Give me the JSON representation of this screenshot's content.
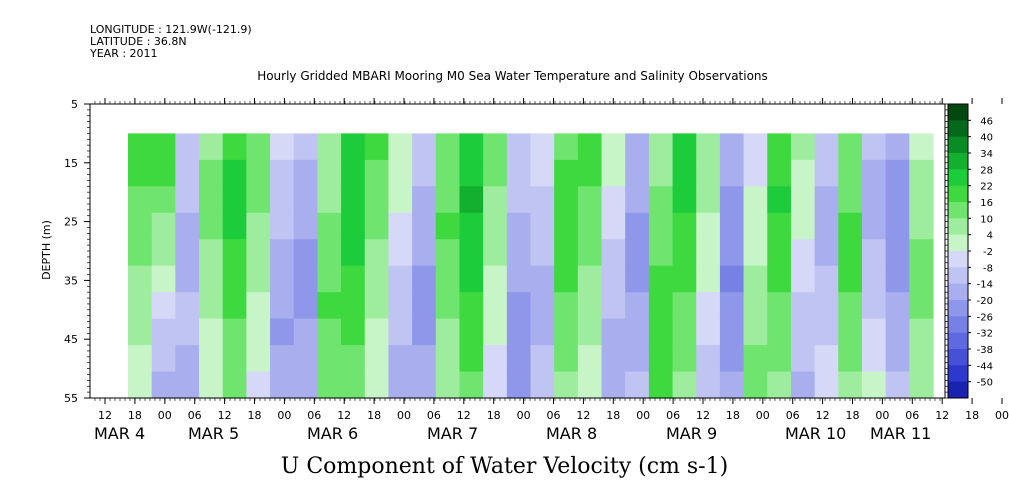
{
  "header": {
    "longitude": "LONGITUDE : 121.9W(-121.9)",
    "latitude": "LATITUDE : 36.8N",
    "year": "YEAR : 2011"
  },
  "chart_data": {
    "type": "heatmap",
    "title": "Hourly Gridded MBARI Mooring M0 Sea Water Temperature and Salinity Observations",
    "xlabel": "U Component of Water Velocity (cm s-1)",
    "ylabel": "DEPTH (m)",
    "ylim": [
      55,
      5
    ],
    "depth_range_data": [
      10,
      55
    ],
    "y_ticks": [
      5,
      15,
      25,
      35,
      45,
      55
    ],
    "x_hour_ticks": [
      "12",
      "18",
      "00",
      "06",
      "12",
      "18",
      "00",
      "06",
      "12",
      "18",
      "00",
      "06",
      "12",
      "18",
      "00",
      "06",
      "12",
      "18",
      "00",
      "06",
      "12",
      "18",
      "00",
      "06",
      "12",
      "18",
      "00",
      "06",
      "12",
      "18",
      "00",
      "06",
      "12",
      "18",
      "00",
      "06"
    ],
    "x_day_labels": [
      "MAR 4",
      "MAR 5",
      "MAR 6",
      "MAR 7",
      "MAR 8",
      "MAR 9",
      "MAR 10",
      "MAR 11"
    ],
    "colorbar_labels": [
      "46",
      "40",
      "34",
      "28",
      "22",
      "16",
      "10",
      "4",
      "-2",
      "-8",
      "-14",
      "-20",
      "-26",
      "-32",
      "-38",
      "-44",
      "-50"
    ],
    "colorscale": {
      "positive": [
        "#c8f5c8",
        "#9eed9e",
        "#6fe46f",
        "#3ed93e",
        "#1dcc3a",
        "#12b02e",
        "#0a8c24",
        "#06681a",
        "#034810"
      ],
      "negative": [
        "#d6d8f7",
        "#c0c4f2",
        "#a8aeee",
        "#8f97ea",
        "#7780e5",
        "#5f69e0",
        "#4651d8",
        "#2d38cc",
        "#1a22b0",
        "#0e138a",
        "#060860"
      ]
    },
    "grid": false,
    "legend": "right colorbar",
    "columns": [
      [
        18,
        20,
        17,
        15,
        12,
        10,
        8,
        6,
        4,
        2
      ],
      [
        20,
        18,
        14,
        10,
        6,
        2,
        -4,
        -8,
        -10,
        -12
      ],
      [
        -6,
        -8,
        -10,
        -12,
        -14,
        -12,
        -10,
        -8,
        -12,
        -16
      ],
      [
        10,
        12,
        14,
        12,
        10,
        8,
        6,
        4,
        2,
        0
      ],
      [
        22,
        24,
        26,
        24,
        22,
        20,
        18,
        16,
        14,
        12
      ],
      [
        16,
        14,
        12,
        10,
        8,
        6,
        4,
        2,
        0,
        -2
      ],
      [
        -4,
        -6,
        -8,
        -10,
        -12,
        -14,
        -16,
        -18,
        -16,
        -14
      ],
      [
        -10,
        -12,
        -14,
        -16,
        -18,
        -20,
        -18,
        -16,
        -14,
        -12
      ],
      [
        6,
        8,
        10,
        12,
        14,
        16,
        18,
        16,
        14,
        12
      ],
      [
        24,
        26,
        28,
        26,
        24,
        22,
        20,
        18,
        16,
        14
      ],
      [
        18,
        16,
        14,
        12,
        10,
        8,
        6,
        4,
        2,
        0
      ],
      [
        4,
        2,
        0,
        -2,
        -4,
        -6,
        -8,
        -10,
        -12,
        -14
      ],
      [
        -8,
        -10,
        -12,
        -14,
        -16,
        -18,
        -20,
        -18,
        -16,
        -14
      ],
      [
        12,
        14,
        16,
        18,
        16,
        14,
        12,
        10,
        8,
        6
      ],
      [
        26,
        28,
        30,
        28,
        26,
        24,
        22,
        20,
        18,
        16
      ],
      [
        14,
        12,
        10,
        8,
        6,
        4,
        2,
        0,
        -2,
        -4
      ],
      [
        -6,
        -8,
        -10,
        -12,
        -14,
        -16,
        -18,
        -20,
        -22,
        -20
      ],
      [
        -2,
        -4,
        -6,
        -8,
        -10,
        -12,
        -14,
        -12,
        -10,
        -8
      ],
      [
        16,
        18,
        20,
        22,
        20,
        18,
        16,
        14,
        12,
        10
      ],
      [
        20,
        18,
        16,
        14,
        12,
        10,
        8,
        6,
        4,
        2
      ],
      [
        2,
        0,
        -2,
        -4,
        -6,
        -8,
        -10,
        -12,
        -14,
        -12
      ],
      [
        -12,
        -14,
        -16,
        -18,
        -20,
        -18,
        -16,
        -14,
        -12,
        -10
      ],
      [
        8,
        10,
        12,
        14,
        16,
        18,
        20,
        22,
        20,
        18
      ],
      [
        28,
        26,
        24,
        22,
        20,
        18,
        16,
        14,
        12,
        10
      ],
      [
        10,
        8,
        6,
        4,
        2,
        0,
        -2,
        -4,
        -6,
        -8
      ],
      [
        -14,
        -16,
        -18,
        -20,
        -22,
        -24,
        -22,
        -20,
        -18,
        -16
      ],
      [
        -4,
        -2,
        0,
        2,
        4,
        6,
        8,
        10,
        12,
        14
      ],
      [
        20,
        22,
        24,
        22,
        20,
        18,
        16,
        14,
        12,
        10
      ],
      [
        6,
        4,
        2,
        0,
        -2,
        -4,
        -6,
        -8,
        -10,
        -12
      ],
      [
        -8,
        -10,
        -12,
        -14,
        -12,
        -10,
        -8,
        -6,
        -4,
        -2
      ],
      [
        12,
        14,
        16,
        18,
        20,
        18,
        16,
        14,
        12,
        10
      ],
      [
        -10,
        -12,
        -14,
        -12,
        -10,
        -8,
        -6,
        -4,
        -2,
        0
      ],
      [
        -16,
        -18,
        -20,
        -22,
        -20,
        -18,
        -16,
        -14,
        -12,
        -10
      ],
      [
        4,
        6,
        8,
        10,
        12,
        14,
        12,
        10,
        8,
        6
      ]
    ]
  }
}
